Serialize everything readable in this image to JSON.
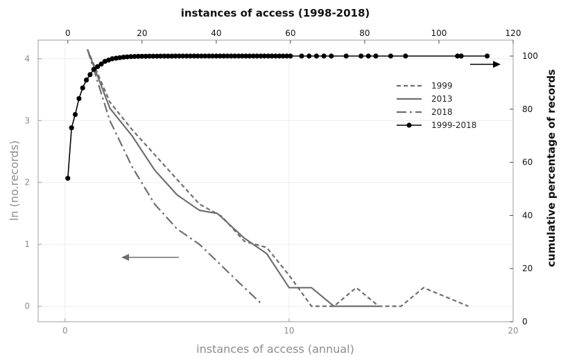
{
  "chart_data": {
    "type": "line",
    "xlabel": "instances of access (annual)",
    "ylabel": "ln (no.records)",
    "x2label": "instances of access (1998-2018)",
    "y2label": "cumulative percentage of records",
    "xlim": [
      -1.2,
      20
    ],
    "ylim": [
      -0.25,
      4.3
    ],
    "x2lim": [
      -8,
      120
    ],
    "y2lim": [
      0,
      106
    ],
    "xticks": [
      0,
      10,
      20
    ],
    "yticks": [
      0,
      1,
      2,
      3,
      4
    ],
    "x2ticks": [
      0,
      20,
      40,
      60,
      80,
      100,
      120
    ],
    "y2ticks": [
      0,
      20,
      40,
      60,
      80,
      100
    ],
    "grid": true,
    "legend_position": "right",
    "colors": {
      "s1999": "#6e6e6e",
      "s2013": "#6e6e6e",
      "s2018": "#6e6e6e",
      "cumulative": "#000000",
      "left_axis": "#8c8c8c",
      "right_axis": "#111111"
    },
    "series": [
      {
        "name": "1999",
        "axis": "bottom-left",
        "style": "dashed",
        "x": [
          1,
          2,
          3,
          4,
          5,
          6,
          7,
          8,
          9,
          10,
          11,
          12,
          13,
          14,
          15,
          16,
          17,
          18
        ],
        "y": [
          4.15,
          3.3,
          2.85,
          2.45,
          2.05,
          1.65,
          1.45,
          1.05,
          0.95,
          0.5,
          0,
          0,
          0.3,
          0,
          0,
          0.3,
          0.15,
          0
        ]
      },
      {
        "name": "2013",
        "axis": "bottom-left",
        "style": "solid",
        "x": [
          1,
          2,
          3,
          4,
          5,
          6,
          6.8,
          8,
          9,
          10,
          11,
          12,
          14
        ],
        "y": [
          4.15,
          3.2,
          2.75,
          2.2,
          1.8,
          1.55,
          1.5,
          1.1,
          0.85,
          0.3,
          0.3,
          0,
          0
        ]
      },
      {
        "name": "2018",
        "axis": "bottom-left",
        "style": "dashdot",
        "x": [
          1,
          2,
          3,
          4,
          5,
          6,
          7,
          8,
          8.8
        ],
        "y": [
          4.15,
          3.0,
          2.25,
          1.65,
          1.25,
          1.0,
          0.65,
          0.3,
          0.03
        ]
      },
      {
        "name": "1999-2018",
        "axis": "top-right",
        "style": "solid-markers",
        "x": [
          0,
          1,
          2,
          3,
          4,
          5,
          6,
          7,
          8,
          9,
          10,
          11,
          12,
          13,
          14,
          15,
          16,
          17,
          18,
          19,
          20,
          21,
          22,
          23,
          24,
          25,
          26,
          27,
          28,
          29,
          30,
          31,
          32,
          33,
          34,
          35,
          36,
          37,
          38,
          39,
          40,
          41,
          42,
          43,
          44,
          45,
          46,
          47,
          48,
          49,
          50,
          51,
          52,
          53,
          54,
          55,
          56,
          57,
          58,
          59,
          60,
          63,
          65,
          67,
          69,
          71,
          75,
          79,
          81,
          83,
          87,
          91,
          105,
          106,
          113
        ],
        "y": [
          54,
          73,
          78,
          84,
          88,
          91,
          93,
          95,
          96,
          97,
          98,
          98.5,
          99,
          99.2,
          99.4,
          99.6,
          99.7,
          99.8,
          99.85,
          99.9,
          99.92,
          99.94,
          99.95,
          99.96,
          99.97,
          99.98,
          99.98,
          99.99,
          99.99,
          100,
          100,
          100,
          100,
          100,
          100,
          100,
          100,
          100,
          100,
          100,
          100,
          100,
          100,
          100,
          100,
          100,
          100,
          100,
          100,
          100,
          100,
          100,
          100,
          100,
          100,
          100,
          100,
          100,
          100,
          100,
          100,
          100,
          100,
          100,
          100,
          100,
          100,
          100,
          100,
          100,
          100,
          100,
          100,
          100,
          100
        ]
      }
    ],
    "annotations": [
      {
        "type": "arrow",
        "direction": "left",
        "meaning": "lower and left axes"
      },
      {
        "type": "arrow",
        "direction": "right",
        "meaning": "upper and right axes"
      }
    ]
  }
}
